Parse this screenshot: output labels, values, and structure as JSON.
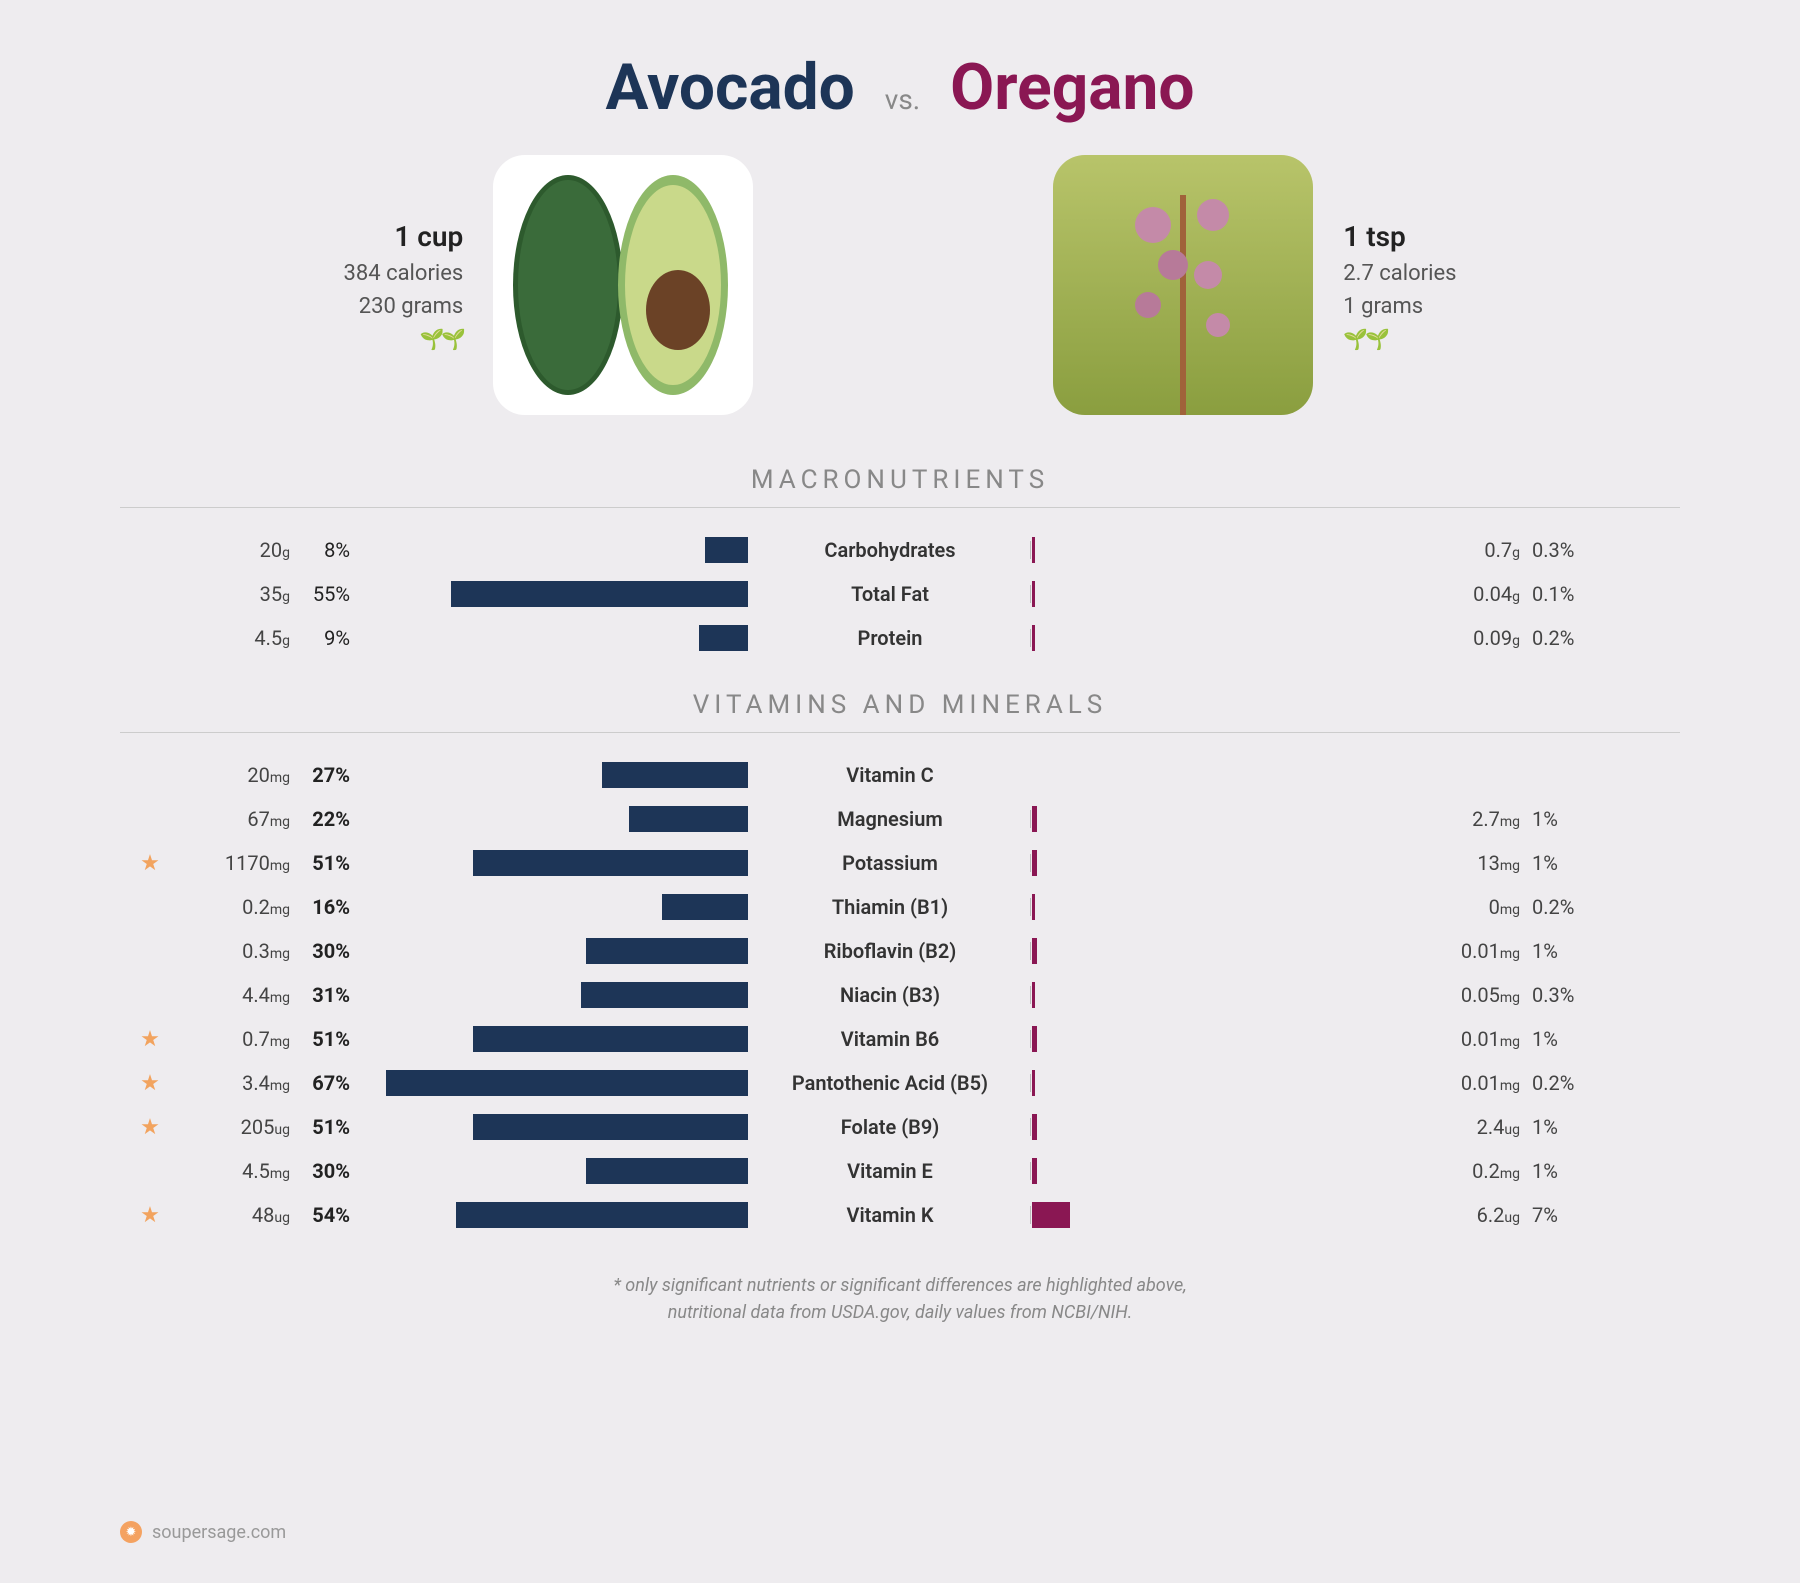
{
  "colors": {
    "left": "#1d3557",
    "right": "#8a1753",
    "star": "#f2a35e",
    "vs": "#888888"
  },
  "foodA": {
    "name": "Avocado",
    "serving": "1 cup",
    "calories": "384 calories",
    "grams": "230 grams",
    "leaves": "🌱🌱"
  },
  "foodB": {
    "name": "Oregano",
    "serving": "1 tsp",
    "calories": "2.7 calories",
    "grams": "1 grams",
    "leaves": "🌱🌱"
  },
  "vs": "vs.",
  "sections": {
    "macro": "MACRONUTRIENTS",
    "vita": "VITAMINS AND MINERALS"
  },
  "barMaxPct": 70,
  "macros": [
    {
      "label": "Carbohydrates",
      "l_amt": "20",
      "l_unit": "g",
      "l_pct": 8,
      "r_amt": "0.7",
      "r_unit": "g",
      "r_pct": 0.3
    },
    {
      "label": "Total Fat",
      "l_amt": "35",
      "l_unit": "g",
      "l_pct": 55,
      "r_amt": "0.04",
      "r_unit": "g",
      "r_pct": 0.1
    },
    {
      "label": "Protein",
      "l_amt": "4.5",
      "l_unit": "g",
      "l_pct": 9,
      "r_amt": "0.09",
      "r_unit": "g",
      "r_pct": 0.2
    }
  ],
  "vitamins": [
    {
      "label": "Vitamin C",
      "l_amt": "20",
      "l_unit": "mg",
      "l_pct": 27,
      "r_amt": "",
      "r_unit": "",
      "r_pct": null,
      "star": false
    },
    {
      "label": "Magnesium",
      "l_amt": "67",
      "l_unit": "mg",
      "l_pct": 22,
      "r_amt": "2.7",
      "r_unit": "mg",
      "r_pct": 1,
      "star": false
    },
    {
      "label": "Potassium",
      "l_amt": "1170",
      "l_unit": "mg",
      "l_pct": 51,
      "r_amt": "13",
      "r_unit": "mg",
      "r_pct": 1,
      "star": true
    },
    {
      "label": "Thiamin (B1)",
      "l_amt": "0.2",
      "l_unit": "mg",
      "l_pct": 16,
      "r_amt": "0",
      "r_unit": "mg",
      "r_pct": 0.2,
      "star": false
    },
    {
      "label": "Riboflavin (B2)",
      "l_amt": "0.3",
      "l_unit": "mg",
      "l_pct": 30,
      "r_amt": "0.01",
      "r_unit": "mg",
      "r_pct": 1,
      "star": false
    },
    {
      "label": "Niacin (B3)",
      "l_amt": "4.4",
      "l_unit": "mg",
      "l_pct": 31,
      "r_amt": "0.05",
      "r_unit": "mg",
      "r_pct": 0.3,
      "star": false
    },
    {
      "label": "Vitamin B6",
      "l_amt": "0.7",
      "l_unit": "mg",
      "l_pct": 51,
      "r_amt": "0.01",
      "r_unit": "mg",
      "r_pct": 1,
      "star": true
    },
    {
      "label": "Pantothenic Acid (B5)",
      "l_amt": "3.4",
      "l_unit": "mg",
      "l_pct": 67,
      "r_amt": "0.01",
      "r_unit": "mg",
      "r_pct": 0.2,
      "star": true
    },
    {
      "label": "Folate (B9)",
      "l_amt": "205",
      "l_unit": "ug",
      "l_pct": 51,
      "r_amt": "2.4",
      "r_unit": "ug",
      "r_pct": 1,
      "star": true
    },
    {
      "label": "Vitamin E",
      "l_amt": "4.5",
      "l_unit": "mg",
      "l_pct": 30,
      "r_amt": "0.2",
      "r_unit": "mg",
      "r_pct": 1,
      "star": false
    },
    {
      "label": "Vitamin K",
      "l_amt": "48",
      "l_unit": "ug",
      "l_pct": 54,
      "r_amt": "6.2",
      "r_unit": "ug",
      "r_pct": 7,
      "star": true
    }
  ],
  "footer1": "* only significant nutrients or significant differences are highlighted above,",
  "footer2": "nutritional data from USDA.gov, daily values from NCBI/NIH.",
  "brand": "soupersage.com"
}
